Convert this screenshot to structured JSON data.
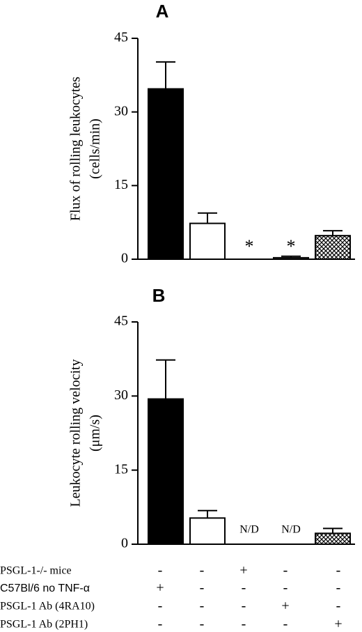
{
  "chart_data": [
    {
      "type": "bar",
      "title": "A",
      "y_label": [
        "Flux of rolling leukocytes",
        "(cells/min)"
      ],
      "categories": [
        null,
        null,
        null,
        null,
        null
      ],
      "values": [
        34.7,
        7.3,
        0,
        0.3,
        4.8
      ],
      "errors": [
        5.5,
        2.1,
        null,
        0.3,
        1.0
      ],
      "annotations": [
        null,
        null,
        "*",
        "*",
        null
      ],
      "fills": [
        "#000000",
        "#ffffff",
        "#ffffff",
        "#ffffff",
        "crosshatch"
      ],
      "ylim": [
        0,
        45
      ],
      "yticks": [
        0,
        15,
        30,
        45
      ]
    },
    {
      "type": "bar",
      "title": "B",
      "y_label": [
        "Leukocyte rolling velocity",
        "(μm/s)"
      ],
      "categories": [
        null,
        null,
        null,
        null,
        null
      ],
      "values": [
        29.4,
        5.3,
        null,
        null,
        2.2
      ],
      "errors": [
        7.9,
        1.5,
        null,
        null,
        1.0
      ],
      "annotations": [
        null,
        null,
        "N/D",
        "N/D",
        null
      ],
      "fills": [
        "#000000",
        "#ffffff",
        "#ffffff",
        "#ffffff",
        "crosshatch"
      ],
      "ylim": [
        0,
        45
      ],
      "yticks": [
        0,
        15,
        30,
        45
      ]
    }
  ],
  "conditions": {
    "rows": [
      {
        "label": "PSGL-1-/- mice",
        "signs": [
          "-",
          "-",
          "+",
          "-",
          "-"
        ]
      },
      {
        "label": "C57Bl/6 no TNF-α",
        "signs": [
          "+",
          "-",
          "-",
          "-",
          "-"
        ]
      },
      {
        "label": "PSGL-1 Ab (4RA10)",
        "signs": [
          "-",
          "-",
          "-",
          "+",
          "-"
        ]
      },
      {
        "label": "PSGL-1 Ab (2PH1)",
        "signs": [
          "-",
          "-",
          "-",
          "-",
          "+"
        ]
      }
    ]
  }
}
